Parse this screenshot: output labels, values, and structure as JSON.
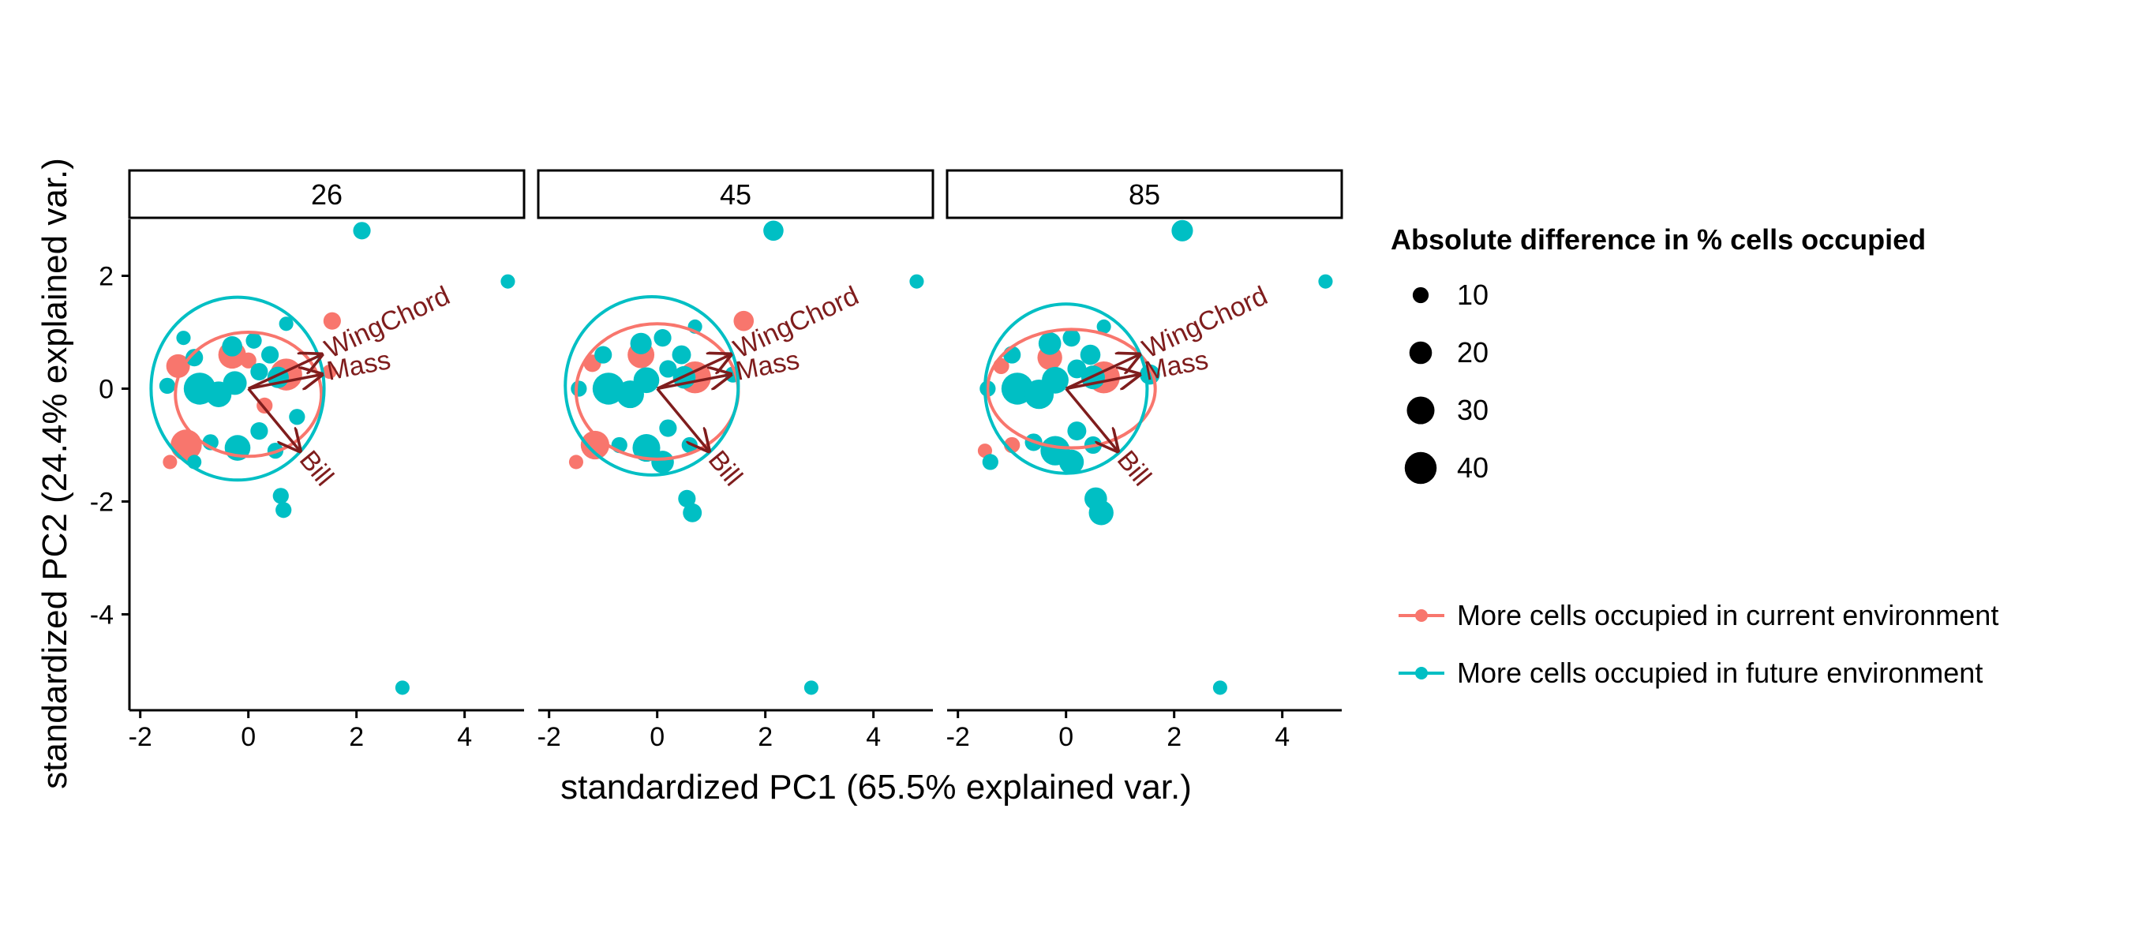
{
  "colors": {
    "current": "#F8766D",
    "future": "#00BFC4",
    "arrow": "#7F1D1D",
    "axis": "#000000"
  },
  "legend": {
    "size_title": "Absolute difference in % cells occupied",
    "size_entries": [
      10,
      20,
      30,
      40
    ],
    "color_entries": [
      {
        "key": "current",
        "label": "More cells occupied in current environment"
      },
      {
        "key": "future",
        "label": "More cells occupied in future environment"
      }
    ]
  },
  "chart_data": {
    "type": "scatter",
    "subtype": "PCA biplot, faceted",
    "xlabel": "standardized PC1 (65.5% explained var.)",
    "ylabel": "standardized PC2 (24.4% explained var.)",
    "xlim": [
      -2.2,
      5.1
    ],
    "ylim": [
      -5.7,
      3.0
    ],
    "xticks": [
      -2,
      0,
      2,
      4
    ],
    "yticks": [
      2,
      0,
      -2,
      -4
    ],
    "grid": false,
    "facets": [
      {
        "label": "26",
        "ellipses": [
          {
            "group": "current",
            "cx": 0.0,
            "cy": -0.1,
            "rx": 1.35,
            "ry": 1.1
          },
          {
            "group": "future",
            "cx": -0.2,
            "cy": 0.0,
            "rx": 1.6,
            "ry": 1.62
          }
        ],
        "points": [
          {
            "x": 2.1,
            "y": 2.8,
            "size": 12,
            "group": "future"
          },
          {
            "x": 4.8,
            "y": 1.9,
            "size": 8,
            "group": "future"
          },
          {
            "x": 1.55,
            "y": 1.2,
            "size": 12,
            "group": "current"
          },
          {
            "x": 1.5,
            "y": 0.3,
            "size": 8,
            "group": "current"
          },
          {
            "x": 0.7,
            "y": 0.25,
            "size": 40,
            "group": "current"
          },
          {
            "x": -0.3,
            "y": 0.6,
            "size": 30,
            "group": "current"
          },
          {
            "x": -1.3,
            "y": 0.4,
            "size": 22,
            "group": "current"
          },
          {
            "x": -1.15,
            "y": -1.0,
            "size": 38,
            "group": "current"
          },
          {
            "x": -1.45,
            "y": -1.3,
            "size": 8,
            "group": "current"
          },
          {
            "x": 0.0,
            "y": 0.5,
            "size": 10,
            "group": "current"
          },
          {
            "x": 0.3,
            "y": -0.3,
            "size": 10,
            "group": "current"
          },
          {
            "x": -0.9,
            "y": 0.0,
            "size": 40,
            "group": "future"
          },
          {
            "x": -0.55,
            "y": -0.1,
            "size": 26,
            "group": "future"
          },
          {
            "x": -0.25,
            "y": 0.1,
            "size": 22,
            "group": "future"
          },
          {
            "x": -0.3,
            "y": 0.75,
            "size": 16,
            "group": "future"
          },
          {
            "x": 0.1,
            "y": 0.85,
            "size": 10,
            "group": "future"
          },
          {
            "x": 0.4,
            "y": 0.6,
            "size": 12,
            "group": "future"
          },
          {
            "x": 0.55,
            "y": 0.2,
            "size": 18,
            "group": "future"
          },
          {
            "x": 0.2,
            "y": 0.3,
            "size": 12,
            "group": "future"
          },
          {
            "x": -1.0,
            "y": 0.55,
            "size": 12,
            "group": "future"
          },
          {
            "x": -1.5,
            "y": 0.05,
            "size": 10,
            "group": "future"
          },
          {
            "x": -0.2,
            "y": -1.05,
            "size": 26,
            "group": "future"
          },
          {
            "x": 0.2,
            "y": -0.75,
            "size": 12,
            "group": "future"
          },
          {
            "x": -0.7,
            "y": -0.95,
            "size": 10,
            "group": "future"
          },
          {
            "x": 0.5,
            "y": -1.1,
            "size": 10,
            "group": "future"
          },
          {
            "x": 0.9,
            "y": -0.5,
            "size": 10,
            "group": "future"
          },
          {
            "x": -1.0,
            "y": -1.3,
            "size": 8,
            "group": "future"
          },
          {
            "x": 0.6,
            "y": -1.9,
            "size": 10,
            "group": "future"
          },
          {
            "x": 0.65,
            "y": -2.15,
            "size": 10,
            "group": "future"
          },
          {
            "x": 2.85,
            "y": -5.3,
            "size": 8,
            "group": "future"
          },
          {
            "x": 0.7,
            "y": 1.15,
            "size": 8,
            "group": "future"
          },
          {
            "x": -1.2,
            "y": 0.9,
            "size": 8,
            "group": "future"
          }
        ]
      },
      {
        "label": "45",
        "ellipses": [
          {
            "group": "current",
            "cx": 0.0,
            "cy": -0.05,
            "rx": 1.5,
            "ry": 1.2
          },
          {
            "group": "future",
            "cx": -0.1,
            "cy": 0.05,
            "rx": 1.6,
            "ry": 1.58
          }
        ],
        "points": [
          {
            "x": 2.15,
            "y": 2.8,
            "size": 16,
            "group": "future"
          },
          {
            "x": 4.8,
            "y": 1.9,
            "size": 8,
            "group": "future"
          },
          {
            "x": 1.6,
            "y": 1.2,
            "size": 16,
            "group": "current"
          },
          {
            "x": 0.7,
            "y": 0.2,
            "size": 40,
            "group": "current"
          },
          {
            "x": -0.3,
            "y": 0.6,
            "size": 28,
            "group": "current"
          },
          {
            "x": -1.2,
            "y": 0.45,
            "size": 12,
            "group": "current"
          },
          {
            "x": -1.15,
            "y": -1.0,
            "size": 32,
            "group": "current"
          },
          {
            "x": -1.5,
            "y": -1.3,
            "size": 8,
            "group": "current"
          },
          {
            "x": -0.9,
            "y": 0.0,
            "size": 40,
            "group": "future"
          },
          {
            "x": -0.5,
            "y": -0.1,
            "size": 30,
            "group": "future"
          },
          {
            "x": -0.2,
            "y": 0.15,
            "size": 26,
            "group": "future"
          },
          {
            "x": -0.3,
            "y": 0.8,
            "size": 18,
            "group": "future"
          },
          {
            "x": 0.1,
            "y": 0.9,
            "size": 12,
            "group": "future"
          },
          {
            "x": 0.45,
            "y": 0.6,
            "size": 14,
            "group": "future"
          },
          {
            "x": 0.5,
            "y": 0.2,
            "size": 20,
            "group": "future"
          },
          {
            "x": 0.2,
            "y": 0.35,
            "size": 12,
            "group": "future"
          },
          {
            "x": -1.0,
            "y": 0.6,
            "size": 12,
            "group": "future"
          },
          {
            "x": -1.45,
            "y": 0.0,
            "size": 10,
            "group": "future"
          },
          {
            "x": -0.2,
            "y": -1.05,
            "size": 30,
            "group": "future"
          },
          {
            "x": 0.1,
            "y": -1.3,
            "size": 20,
            "group": "future"
          },
          {
            "x": 0.2,
            "y": -0.7,
            "size": 12,
            "group": "future"
          },
          {
            "x": -0.7,
            "y": -1.0,
            "size": 10,
            "group": "future"
          },
          {
            "x": 0.6,
            "y": -1.0,
            "size": 10,
            "group": "future"
          },
          {
            "x": 1.4,
            "y": 0.25,
            "size": 10,
            "group": "future"
          },
          {
            "x": 0.55,
            "y": -1.95,
            "size": 12,
            "group": "future"
          },
          {
            "x": 0.65,
            "y": -2.2,
            "size": 14,
            "group": "future"
          },
          {
            "x": 2.85,
            "y": -5.3,
            "size": 8,
            "group": "future"
          },
          {
            "x": 0.7,
            "y": 1.1,
            "size": 8,
            "group": "future"
          }
        ]
      },
      {
        "label": "85",
        "ellipses": [
          {
            "group": "current",
            "cx": 0.1,
            "cy": 0.0,
            "rx": 1.55,
            "ry": 1.05
          },
          {
            "group": "future",
            "cx": 0.0,
            "cy": 0.0,
            "rx": 1.5,
            "ry": 1.5
          }
        ],
        "points": [
          {
            "x": 2.15,
            "y": 2.8,
            "size": 18,
            "group": "future"
          },
          {
            "x": 4.8,
            "y": 1.9,
            "size": 8,
            "group": "future"
          },
          {
            "x": 0.7,
            "y": 0.2,
            "size": 40,
            "group": "current"
          },
          {
            "x": -0.3,
            "y": 0.55,
            "size": 24,
            "group": "current"
          },
          {
            "x": -1.2,
            "y": 0.4,
            "size": 10,
            "group": "current"
          },
          {
            "x": -1.0,
            "y": -1.0,
            "size": 10,
            "group": "current"
          },
          {
            "x": -1.5,
            "y": -1.1,
            "size": 8,
            "group": "current"
          },
          {
            "x": -0.9,
            "y": 0.0,
            "size": 40,
            "group": "future"
          },
          {
            "x": -0.5,
            "y": -0.1,
            "size": 34,
            "group": "future"
          },
          {
            "x": -0.2,
            "y": 0.15,
            "size": 28,
            "group": "future"
          },
          {
            "x": -0.3,
            "y": 0.8,
            "size": 20,
            "group": "future"
          },
          {
            "x": 0.1,
            "y": 0.9,
            "size": 12,
            "group": "future"
          },
          {
            "x": 0.45,
            "y": 0.6,
            "size": 16,
            "group": "future"
          },
          {
            "x": 0.5,
            "y": 0.2,
            "size": 22,
            "group": "future"
          },
          {
            "x": 0.2,
            "y": 0.35,
            "size": 14,
            "group": "future"
          },
          {
            "x": 1.55,
            "y": 0.25,
            "size": 16,
            "group": "future"
          },
          {
            "x": -1.0,
            "y": 0.6,
            "size": 12,
            "group": "future"
          },
          {
            "x": -1.45,
            "y": 0.0,
            "size": 10,
            "group": "future"
          },
          {
            "x": -0.2,
            "y": -1.1,
            "size": 34,
            "group": "future"
          },
          {
            "x": 0.1,
            "y": -1.3,
            "size": 24,
            "group": "future"
          },
          {
            "x": 0.2,
            "y": -0.75,
            "size": 14,
            "group": "future"
          },
          {
            "x": -0.6,
            "y": -0.95,
            "size": 12,
            "group": "future"
          },
          {
            "x": 0.5,
            "y": -1.0,
            "size": 12,
            "group": "future"
          },
          {
            "x": -1.4,
            "y": -1.3,
            "size": 10,
            "group": "future"
          },
          {
            "x": 0.55,
            "y": -1.95,
            "size": 20,
            "group": "future"
          },
          {
            "x": 0.65,
            "y": -2.2,
            "size": 24,
            "group": "future"
          },
          {
            "x": 2.85,
            "y": -5.3,
            "size": 8,
            "group": "future"
          },
          {
            "x": 0.7,
            "y": 1.1,
            "size": 8,
            "group": "future"
          }
        ]
      }
    ],
    "loadings": [
      {
        "label": "WingChord",
        "x": 1.35,
        "y": 0.6
      },
      {
        "label": "Mass",
        "x": 1.35,
        "y": 0.25
      },
      {
        "label": "Bill",
        "x": 0.95,
        "y": -1.1
      }
    ]
  }
}
